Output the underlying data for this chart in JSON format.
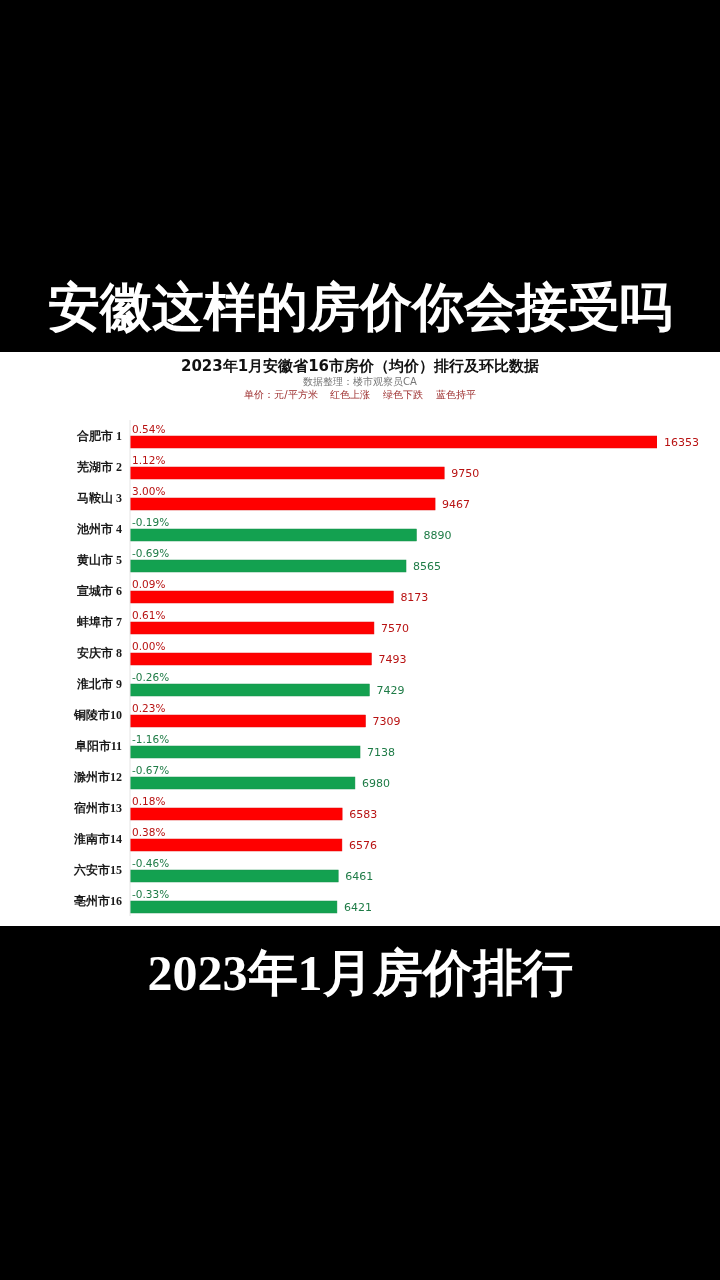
{
  "chart_data": {
    "type": "bar",
    "orientation": "horizontal",
    "title": "2023年1月安徽省16市房价（均价）排行及环比数据",
    "subtitle": "数据整理：楼市观察员CA",
    "categories": [
      "合肥市 1",
      "芜湖市 2",
      "马鞍山 3",
      "池州市 4",
      "黄山市 5",
      "宣城市 6",
      "蚌埠市 7",
      "安庆市 8",
      "淮北市 9",
      "铜陵市10",
      "阜阳市11",
      "滁州市12",
      "宿州市13",
      "淮南市14",
      "六安市15",
      "亳州市16"
    ],
    "values": [
      16353,
      9750,
      9467,
      8890,
      8565,
      8173,
      7570,
      7493,
      7429,
      7309,
      7138,
      6980,
      6583,
      6576,
      6461,
      6421
    ],
    "colors": [
      "#ff0000",
      "#ff0000",
      "#ff0000",
      "#13a150",
      "#13a150",
      "#ff0000",
      "#ff0000",
      "#ff0000",
      "#13a150",
      "#ff0000",
      "#13a150",
      "#13a150",
      "#ff0000",
      "#ff0000",
      "#13a150",
      "#13a150"
    ],
    "data_labels": true,
    "annotations": [
      "安徽这样的房价你会接受吗",
      "单价：元/平方米    红色上涨    绿色下跌    蓝色持平",
      {
        "text": "0.54%",
        "y": "合肥市 1"
      },
      {
        "text": "1.12%",
        "y": "芜湖市 2"
      },
      {
        "text": "3.00%",
        "y": "马鞍山 3"
      },
      {
        "text": "-0.19%",
        "y": "池州市 4"
      },
      {
        "text": "-0.69%",
        "y": "黄山市 5"
      },
      {
        "text": "0.09%",
        "y": "宣城市 6"
      },
      {
        "text": "0.61%",
        "y": "蚌埠市 7"
      },
      {
        "text": "0.00%",
        "y": "安庆市 8"
      },
      {
        "text": "-0.26%",
        "y": "淮北市 9"
      },
      {
        "text": "0.23%",
        "y": "铜陵市10"
      },
      {
        "text": "-1.16%",
        "y": "阜阳市11"
      },
      {
        "text": "-0.67%",
        "y": "滁州市12"
      },
      {
        "text": "0.18%",
        "y": "宿州市13"
      },
      {
        "text": "0.38%",
        "y": "淮南市14"
      },
      {
        "text": "-0.46%",
        "y": "六安市15"
      },
      {
        "text": "-0.33%",
        "y": "亳州市16"
      },
      "2023年1月房价排行"
    ]
  }
}
